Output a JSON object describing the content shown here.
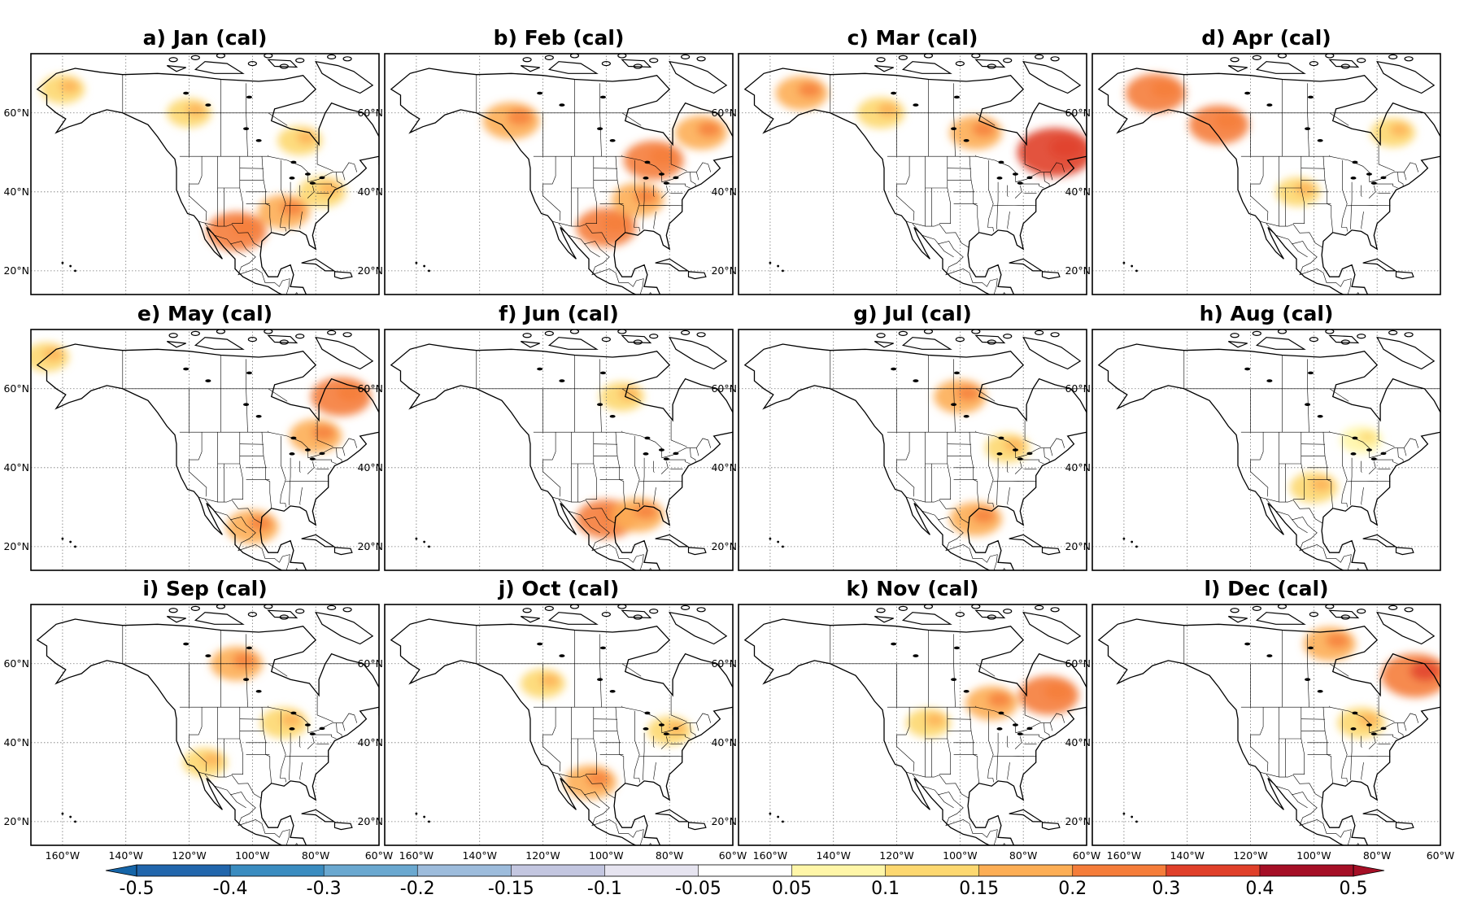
{
  "figure": {
    "panels": [
      {
        "title": "a) Jan (cal)",
        "month": "Jan"
      },
      {
        "title": "b) Feb (cal)",
        "month": "Feb"
      },
      {
        "title": "c) Mar (cal)",
        "month": "Mar"
      },
      {
        "title": "d) Apr (cal)",
        "month": "Apr"
      },
      {
        "title": "e) May (cal)",
        "month": "May"
      },
      {
        "title": "f) Jun (cal)",
        "month": "Jun"
      },
      {
        "title": "g) Jul (cal)",
        "month": "Jul"
      },
      {
        "title": "h) Aug (cal)",
        "month": "Aug"
      },
      {
        "title": "i) Sep (cal)",
        "month": "Sep"
      },
      {
        "title": "j) Oct (cal)",
        "month": "Oct"
      },
      {
        "title": "k) Nov (cal)",
        "month": "Nov"
      },
      {
        "title": "l) Dec (cal)",
        "month": "Dec"
      }
    ],
    "latitude_labels": [
      "60°N",
      "40°N",
      "20°N"
    ],
    "longitude_labels": [
      "160°W",
      "140°W",
      "120°W",
      "100°W",
      "80°W",
      "60°W"
    ],
    "map_extent": {
      "lon_min": -170,
      "lon_max": -60,
      "lat_min": 14,
      "lat_max": 75
    },
    "gridlines": "dotted",
    "colorbar": {
      "orientation": "horizontal",
      "extend": "both",
      "ticks": [
        "-0.5",
        "-0.4",
        "-0.3",
        "-0.2",
        "-0.15",
        "-0.1",
        "-0.05",
        "0.05",
        "0.1",
        "0.15",
        "0.2",
        "0.3",
        "0.4",
        "0.5"
      ],
      "colors": [
        "#2166ac",
        "#3a8cc0",
        "#6aa8d0",
        "#9dbcdc",
        "#c3c6e0",
        "#e6e4f0",
        "#ffffff",
        "#fff6a8",
        "#fdd870",
        "#fdae55",
        "#f57d3a",
        "#e0402a",
        "#a50f26"
      ],
      "under_color": "#1565a8",
      "over_color": "#a50f26"
    },
    "anomaly_regions": [
      [
        {
          "lon": -105,
          "lat": 30,
          "v": 0.2
        },
        {
          "lon": -90,
          "lat": 35,
          "v": 0.15
        },
        {
          "lon": -78,
          "lat": 40,
          "v": 0.12
        },
        {
          "lon": -160,
          "lat": 66,
          "v": 0.1
        },
        {
          "lon": -120,
          "lat": 60,
          "v": 0.1
        },
        {
          "lon": -85,
          "lat": 53,
          "v": 0.1
        }
      ],
      [
        {
          "lon": -100,
          "lat": 31,
          "v": 0.2
        },
        {
          "lon": -85,
          "lat": 48,
          "v": 0.2
        },
        {
          "lon": -130,
          "lat": 58,
          "v": 0.18
        },
        {
          "lon": -70,
          "lat": 55,
          "v": 0.15
        },
        {
          "lon": -90,
          "lat": 38,
          "v": 0.15
        }
      ],
      [
        {
          "lon": -150,
          "lat": 65,
          "v": 0.15
        },
        {
          "lon": -70,
          "lat": 50,
          "v": 0.3
        },
        {
          "lon": -95,
          "lat": 55,
          "v": 0.15
        },
        {
          "lon": -125,
          "lat": 60,
          "v": 0.12
        }
      ],
      [
        {
          "lon": -150,
          "lat": 65,
          "v": 0.2
        },
        {
          "lon": -130,
          "lat": 57,
          "v": 0.2
        },
        {
          "lon": -75,
          "lat": 55,
          "v": 0.1
        },
        {
          "lon": -105,
          "lat": 40,
          "v": 0.1
        }
      ],
      [
        {
          "lon": -72,
          "lat": 58,
          "v": 0.2
        },
        {
          "lon": -80,
          "lat": 48,
          "v": 0.15
        },
        {
          "lon": -100,
          "lat": 25,
          "v": 0.15
        },
        {
          "lon": -165,
          "lat": 68,
          "v": 0.1
        }
      ],
      [
        {
          "lon": -100,
          "lat": 27,
          "v": 0.2
        },
        {
          "lon": -90,
          "lat": 28,
          "v": 0.15
        },
        {
          "lon": -95,
          "lat": 58,
          "v": 0.1
        }
      ],
      [
        {
          "lon": -100,
          "lat": 58,
          "v": 0.15
        },
        {
          "lon": -95,
          "lat": 27,
          "v": 0.15
        },
        {
          "lon": -85,
          "lat": 45,
          "v": 0.1
        }
      ],
      [
        {
          "lon": -100,
          "lat": 35,
          "v": 0.12
        },
        {
          "lon": -85,
          "lat": 47,
          "v": 0.08
        }
      ],
      [
        {
          "lon": -105,
          "lat": 60,
          "v": 0.15
        },
        {
          "lon": -90,
          "lat": 45,
          "v": 0.12
        },
        {
          "lon": -115,
          "lat": 35,
          "v": 0.1
        }
      ],
      [
        {
          "lon": -105,
          "lat": 30,
          "v": 0.15
        },
        {
          "lon": -120,
          "lat": 55,
          "v": 0.1
        },
        {
          "lon": -80,
          "lat": 43,
          "v": 0.1
        }
      ],
      [
        {
          "lon": -72,
          "lat": 52,
          "v": 0.2
        },
        {
          "lon": -90,
          "lat": 50,
          "v": 0.15
        },
        {
          "lon": -110,
          "lat": 45,
          "v": 0.1
        }
      ],
      [
        {
          "lon": -68,
          "lat": 57,
          "v": 0.25
        },
        {
          "lon": -95,
          "lat": 65,
          "v": 0.15
        },
        {
          "lon": -85,
          "lat": 45,
          "v": 0.12
        }
      ]
    ]
  }
}
